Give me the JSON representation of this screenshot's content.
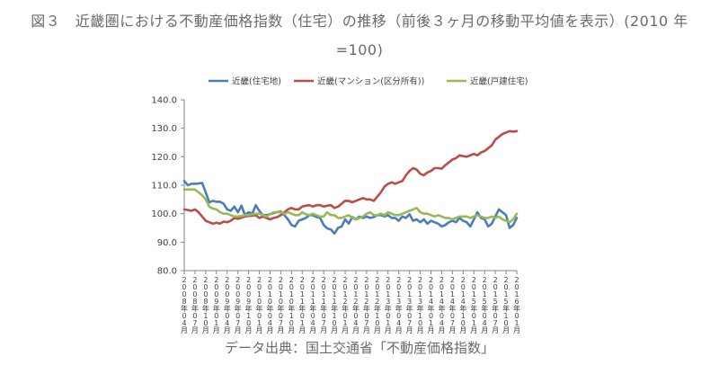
{
  "title": {
    "line1": "図３　近畿圏における不動産価格指数（住宅）の推移（前後３ヶ月の移動平均値を表示）(2010 年",
    "line2": "=100)"
  },
  "source_note": "データ出典：国土交通省「不動産価格指数」",
  "chart_data": {
    "type": "line",
    "ylim": [
      80,
      140
    ],
    "yticks": [
      "80.0",
      "90.0",
      "100.0",
      "110.0",
      "120.0",
      "130.0",
      "140.0"
    ],
    "ytick_values": [
      80,
      90,
      100,
      110,
      120,
      130,
      140
    ],
    "grid": false,
    "legend": "top",
    "x": [
      "2008-04",
      "2008-05",
      "2008-06",
      "2008-07",
      "2008-08",
      "2008-09",
      "2008-10",
      "2008-11",
      "2008-12",
      "2009-01",
      "2009-02",
      "2009-03",
      "2009-04",
      "2009-05",
      "2009-06",
      "2009-07",
      "2009-08",
      "2009-09",
      "2009-10",
      "2009-11",
      "2009-12",
      "2010-01",
      "2010-02",
      "2010-03",
      "2010-04",
      "2010-05",
      "2010-06",
      "2010-07",
      "2010-08",
      "2010-09",
      "2010-10",
      "2010-11",
      "2010-12",
      "2011-01",
      "2011-02",
      "2011-03",
      "2011-04",
      "2011-05",
      "2011-06",
      "2011-07",
      "2011-08",
      "2011-09",
      "2011-10",
      "2011-11",
      "2011-12",
      "2012-01",
      "2012-02",
      "2012-03",
      "2012-04",
      "2012-05",
      "2012-06",
      "2012-07",
      "2012-08",
      "2012-09",
      "2012-10",
      "2012-11",
      "2012-12",
      "2013-01",
      "2013-02",
      "2013-03",
      "2013-04",
      "2013-05",
      "2013-06",
      "2013-07",
      "2013-08",
      "2013-09",
      "2013-10",
      "2013-11",
      "2013-12",
      "2014-01",
      "2014-02",
      "2014-03",
      "2014-04",
      "2014-05",
      "2014-06",
      "2014-07",
      "2014-08",
      "2014-09",
      "2014-10",
      "2014-11",
      "2014-12",
      "2015-01",
      "2015-02",
      "2015-03",
      "2015-04",
      "2015-05",
      "2015-06",
      "2015-07",
      "2015-08",
      "2015-09",
      "2015-10",
      "2015-11",
      "2015-12",
      "2016-01"
    ],
    "xtick_labels": [
      "2008年04月",
      "2008年07月",
      "2008年10月",
      "2009年01月",
      "2009年04月",
      "2009年07月",
      "2009年10月",
      "2010年01月",
      "2010年04月",
      "2010年07月",
      "2010年10月",
      "2011年01月",
      "2011年04月",
      "2011年07月",
      "2011年10月",
      "2012年01月",
      "2012年04月",
      "2012年07月",
      "2012年10月",
      "2013年01月",
      "2013年04月",
      "2013年07月",
      "2013年10月",
      "2014年01月",
      "2014年04月",
      "2014年07月",
      "2014年10月",
      "2015年01月",
      "2015年04月",
      "2015年07月",
      "2015年10月",
      "2016年01月"
    ],
    "series": [
      {
        "name": "近畿(住宅地)",
        "color": "#4a7ebb",
        "values": [
          111.5,
          110.0,
          110.5,
          110.5,
          110.6,
          110.8,
          107.5,
          104.0,
          104.5,
          104.2,
          104.2,
          103.5,
          101.5,
          101.0,
          102.5,
          100.5,
          102.8,
          99.5,
          100.5,
          100.0,
          103.0,
          101.0,
          99.5,
          99.5,
          99.8,
          100.2,
          100.5,
          100.8,
          99.5,
          98.0,
          96.0,
          95.5,
          97.5,
          98.0,
          98.5,
          99.5,
          99.5,
          98.8,
          98.5,
          96.0,
          94.8,
          94.5,
          93.0,
          95.0,
          95.5,
          98.0,
          96.5,
          98.8,
          98.0,
          99.0,
          98.5,
          99.0,
          98.5,
          98.8,
          99.5,
          99.5,
          99.0,
          99.5,
          98.5,
          98.5,
          97.5,
          99.0,
          98.5,
          99.8,
          97.5,
          98.0,
          97.0,
          98.0,
          96.5,
          97.5,
          97.0,
          96.5,
          95.5,
          96.0,
          97.0,
          97.5,
          97.0,
          98.5,
          97.5,
          97.0,
          95.5,
          98.0,
          100.5,
          98.5,
          98.0,
          95.5,
          96.5,
          99.0,
          101.5,
          100.5,
          99.5,
          95.0,
          96.0,
          98.5
        ]
      },
      {
        "name": "近畿(マンション(区分所有))",
        "color": "#be4b48",
        "values": [
          101.5,
          101.3,
          101.0,
          101.5,
          100.5,
          99.0,
          97.5,
          97.0,
          96.5,
          96.8,
          96.5,
          97.2,
          97.0,
          97.5,
          98.5,
          98.2,
          98.6,
          99.0,
          99.2,
          99.3,
          99.5,
          98.5,
          99.0,
          98.5,
          98.0,
          98.5,
          98.8,
          99.5,
          100.5,
          101.5,
          102.0,
          101.5,
          101.5,
          102.5,
          102.8,
          103.0,
          102.5,
          103.0,
          103.0,
          102.5,
          102.8,
          103.0,
          102.0,
          102.5,
          103.5,
          104.5,
          104.5,
          104.0,
          104.5,
          105.0,
          105.5,
          105.0,
          105.0,
          104.5,
          106.0,
          107.5,
          109.5,
          110.5,
          111.0,
          110.5,
          111.0,
          111.5,
          113.5,
          115.0,
          116.0,
          115.5,
          114.0,
          113.5,
          114.5,
          115.0,
          116.0,
          116.0,
          115.8,
          117.0,
          118.0,
          119.0,
          119.5,
          120.5,
          120.2,
          120.0,
          120.5,
          121.0,
          120.5,
          121.5,
          122.0,
          123.0,
          124.0,
          126.0,
          127.0,
          128.0,
          128.5,
          129.0,
          128.8,
          129.0
        ]
      },
      {
        "name": "近畿(戸建住宅)",
        "color": "#98b954",
        "values": [
          108.5,
          108.5,
          108.5,
          108.5,
          107.5,
          106.5,
          105.0,
          102.5,
          101.8,
          101.5,
          100.5,
          100.0,
          100.0,
          99.5,
          99.0,
          99.0,
          99.2,
          99.5,
          99.5,
          99.8,
          100.0,
          100.0,
          99.5,
          99.0,
          99.8,
          100.5,
          100.5,
          100.5,
          100.0,
          100.5,
          100.0,
          99.5,
          99.5,
          100.5,
          99.8,
          99.5,
          100.0,
          99.5,
          99.0,
          99.0,
          100.5,
          99.5,
          99.5,
          98.5,
          98.5,
          99.0,
          99.5,
          98.5,
          98.0,
          98.5,
          99.0,
          100.0,
          100.5,
          99.5,
          99.5,
          100.0,
          99.5,
          100.5,
          100.0,
          99.5,
          99.5,
          100.0,
          100.5,
          101.0,
          101.5,
          102.0,
          100.5,
          100.0,
          100.0,
          99.5,
          99.0,
          99.5,
          99.0,
          98.5,
          98.5,
          98.0,
          98.5,
          99.0,
          99.0,
          99.0,
          98.5,
          99.0,
          99.5,
          99.0,
          98.5,
          98.5,
          99.0,
          98.5,
          99.0,
          98.0,
          97.5,
          97.0,
          98.0,
          100.0
        ]
      }
    ]
  }
}
